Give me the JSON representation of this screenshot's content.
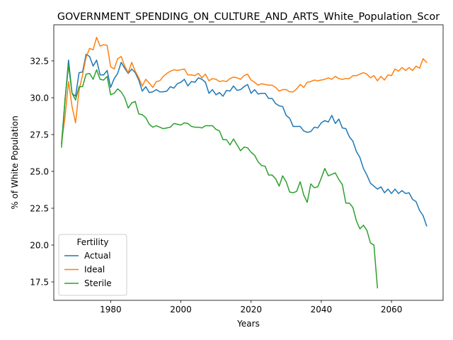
{
  "chart_data": {
    "type": "line",
    "title": "GOVERNMENT_SPENDING_ON_CULTURE_AND_ARTS_White_Population_Scor",
    "xlabel": "Years",
    "ylabel": "% of White Population",
    "xlim": [
      1963.8,
      2074.7
    ],
    "ylim": [
      16.25,
      34.95
    ],
    "xticks": [
      1980,
      2000,
      2020,
      2040,
      2060
    ],
    "yticks": [
      17.5,
      20.0,
      22.5,
      25.0,
      27.5,
      30.0,
      32.5
    ],
    "grid": false,
    "legend": {
      "title": "Fertility",
      "position": "lower-left"
    },
    "series": [
      {
        "name": "Actual",
        "color": "#1f77b4",
        "x": [
          1966,
          1967,
          1968,
          1969,
          1970,
          1971,
          1972,
          1973,
          1974,
          1975,
          1976,
          1977,
          1978,
          1979,
          1980,
          1981,
          1982,
          1983,
          1984,
          1985,
          1986,
          1987,
          1988,
          1989,
          1990,
          1991,
          1992,
          1993,
          1994,
          1995,
          1996,
          1997,
          1998,
          1999,
          2000,
          2001,
          2002,
          2003,
          2004,
          2005,
          2006,
          2007,
          2008,
          2009,
          2010,
          2011,
          2012,
          2013,
          2014,
          2015,
          2016,
          2017,
          2018,
          2019,
          2020,
          2021,
          2022,
          2023,
          2024,
          2025,
          2026,
          2027,
          2028,
          2029,
          2030,
          2031,
          2032,
          2033,
          2034,
          2035,
          2036,
          2037,
          2038,
          2039,
          2040,
          2041,
          2042,
          2043,
          2044,
          2045,
          2046,
          2047,
          2048,
          2049,
          2050,
          2051,
          2052,
          2053,
          2054,
          2055,
          2056,
          2057,
          2058,
          2059,
          2060,
          2061,
          2062,
          2063,
          2064,
          2065,
          2066,
          2067,
          2068,
          2069,
          2070
        ],
        "y": [
          26.9,
          29.8,
          32.55,
          30.3,
          30.1,
          31.7,
          31.75,
          32.95,
          32.8,
          32.15,
          32.55,
          31.55,
          31.55,
          31.85,
          30.7,
          31.3,
          31.65,
          32.4,
          32.0,
          31.65,
          31.95,
          31.7,
          31.2,
          30.45,
          30.75,
          30.35,
          30.4,
          30.55,
          30.4,
          30.4,
          30.45,
          30.75,
          30.65,
          30.95,
          31.05,
          31.25,
          30.8,
          31.1,
          31.05,
          31.35,
          31.25,
          31.05,
          30.3,
          30.55,
          30.2,
          30.35,
          30.1,
          30.5,
          30.45,
          30.8,
          30.5,
          30.55,
          30.75,
          30.9,
          30.3,
          30.55,
          30.25,
          30.3,
          30.3,
          29.95,
          29.95,
          29.6,
          29.45,
          29.4,
          28.8,
          28.6,
          28.05,
          28.05,
          28.05,
          27.75,
          27.65,
          27.7,
          28.0,
          27.95,
          28.3,
          28.45,
          28.35,
          28.8,
          28.25,
          28.55,
          27.95,
          27.9,
          27.35,
          27.05,
          26.35,
          25.95,
          25.2,
          24.75,
          24.2,
          24.0,
          23.8,
          23.95,
          23.55,
          23.8,
          23.5,
          23.8,
          23.5,
          23.7,
          23.5,
          23.55,
          23.1,
          22.95,
          22.35,
          22.0,
          21.3
        ]
      },
      {
        "name": "Ideal",
        "color": "#ff7f0e",
        "x": [
          1966,
          1967,
          1968,
          1969,
          1970,
          1971,
          1972,
          1973,
          1974,
          1975,
          1976,
          1977,
          1978,
          1979,
          1980,
          1981,
          1982,
          1983,
          1984,
          1985,
          1986,
          1987,
          1988,
          1989,
          1990,
          1991,
          1992,
          1993,
          1994,
          1995,
          1996,
          1997,
          1998,
          1999,
          2000,
          2001,
          2002,
          2003,
          2004,
          2005,
          2006,
          2007,
          2008,
          2009,
          2010,
          2011,
          2012,
          2013,
          2014,
          2015,
          2016,
          2017,
          2018,
          2019,
          2020,
          2021,
          2022,
          2023,
          2024,
          2025,
          2026,
          2027,
          2028,
          2029,
          2030,
          2031,
          2032,
          2033,
          2034,
          2035,
          2036,
          2037,
          2038,
          2039,
          2040,
          2041,
          2042,
          2043,
          2044,
          2045,
          2046,
          2047,
          2048,
          2049,
          2050,
          2051,
          2052,
          2053,
          2054,
          2055,
          2056,
          2057,
          2058,
          2059,
          2060,
          2061,
          2062,
          2063,
          2064,
          2065,
          2066,
          2067,
          2068,
          2069,
          2070
        ],
        "y": [
          26.9,
          28.7,
          31.1,
          29.4,
          28.3,
          30.5,
          31.55,
          32.75,
          33.35,
          33.25,
          34.1,
          33.5,
          33.6,
          33.55,
          32.1,
          31.95,
          32.65,
          32.8,
          32.15,
          31.7,
          32.4,
          31.8,
          31.35,
          30.8,
          31.25,
          31.0,
          30.7,
          31.1,
          31.15,
          31.45,
          31.65,
          31.8,
          31.9,
          31.85,
          31.9,
          31.95,
          31.55,
          31.55,
          31.5,
          31.65,
          31.35,
          31.6,
          31.15,
          31.3,
          31.25,
          31.1,
          31.15,
          31.1,
          31.3,
          31.4,
          31.35,
          31.25,
          31.5,
          31.6,
          31.2,
          31.05,
          30.85,
          30.95,
          30.9,
          30.85,
          30.85,
          30.7,
          30.45,
          30.55,
          30.55,
          30.4,
          30.4,
          30.6,
          30.9,
          30.7,
          31.05,
          31.1,
          31.2,
          31.15,
          31.2,
          31.25,
          31.35,
          31.25,
          31.45,
          31.3,
          31.25,
          31.3,
          31.3,
          31.5,
          31.5,
          31.6,
          31.7,
          31.6,
          31.35,
          31.5,
          31.15,
          31.45,
          31.2,
          31.55,
          31.5,
          31.95,
          31.8,
          32.05,
          31.85,
          32.05,
          31.85,
          32.15,
          32.0,
          32.65,
          32.4
        ]
      },
      {
        "name": "Sterile",
        "color": "#2ca02c",
        "x": [
          1966,
          1967,
          1968,
          1969,
          1970,
          1971,
          1972,
          1973,
          1974,
          1975,
          1976,
          1977,
          1978,
          1979,
          1980,
          1981,
          1982,
          1983,
          1984,
          1985,
          1986,
          1987,
          1988,
          1989,
          1990,
          1991,
          1992,
          1993,
          1994,
          1995,
          1996,
          1997,
          1998,
          1999,
          2000,
          2001,
          2002,
          2003,
          2004,
          2005,
          2006,
          2007,
          2008,
          2009,
          2010,
          2011,
          2012,
          2013,
          2014,
          2015,
          2016,
          2017,
          2018,
          2019,
          2020,
          2021,
          2022,
          2023,
          2024,
          2025,
          2026,
          2027,
          2028,
          2029,
          2030,
          2031,
          2032,
          2033,
          2034,
          2035,
          2036,
          2037,
          2038,
          2039,
          2040,
          2041,
          2042,
          2043,
          2044,
          2045,
          2046,
          2047,
          2048,
          2049,
          2050,
          2051,
          2052,
          2053,
          2054,
          2055,
          2056
        ],
        "y": [
          26.65,
          29.9,
          32.2,
          30.3,
          29.85,
          30.75,
          30.75,
          31.6,
          31.65,
          31.25,
          31.9,
          31.25,
          31.2,
          31.45,
          30.2,
          30.3,
          30.6,
          30.4,
          30.0,
          29.3,
          29.65,
          29.75,
          28.9,
          28.85,
          28.65,
          28.2,
          28.0,
          28.1,
          28.0,
          27.9,
          27.95,
          28.0,
          28.25,
          28.2,
          28.15,
          28.3,
          28.25,
          28.05,
          28.0,
          28.0,
          27.95,
          28.1,
          28.1,
          28.1,
          27.85,
          27.75,
          27.15,
          27.15,
          26.8,
          27.2,
          26.8,
          26.4,
          26.65,
          26.6,
          26.3,
          26.1,
          25.65,
          25.4,
          25.35,
          24.75,
          24.75,
          24.5,
          24.0,
          24.7,
          24.3,
          23.6,
          23.55,
          23.65,
          24.3,
          23.4,
          22.9,
          24.15,
          23.9,
          23.95,
          24.55,
          25.2,
          24.7,
          24.8,
          24.9,
          24.45,
          24.1,
          22.85,
          22.85,
          22.55,
          21.65,
          21.1,
          21.35,
          21.0,
          20.15,
          20.0,
          17.1
        ]
      }
    ]
  }
}
